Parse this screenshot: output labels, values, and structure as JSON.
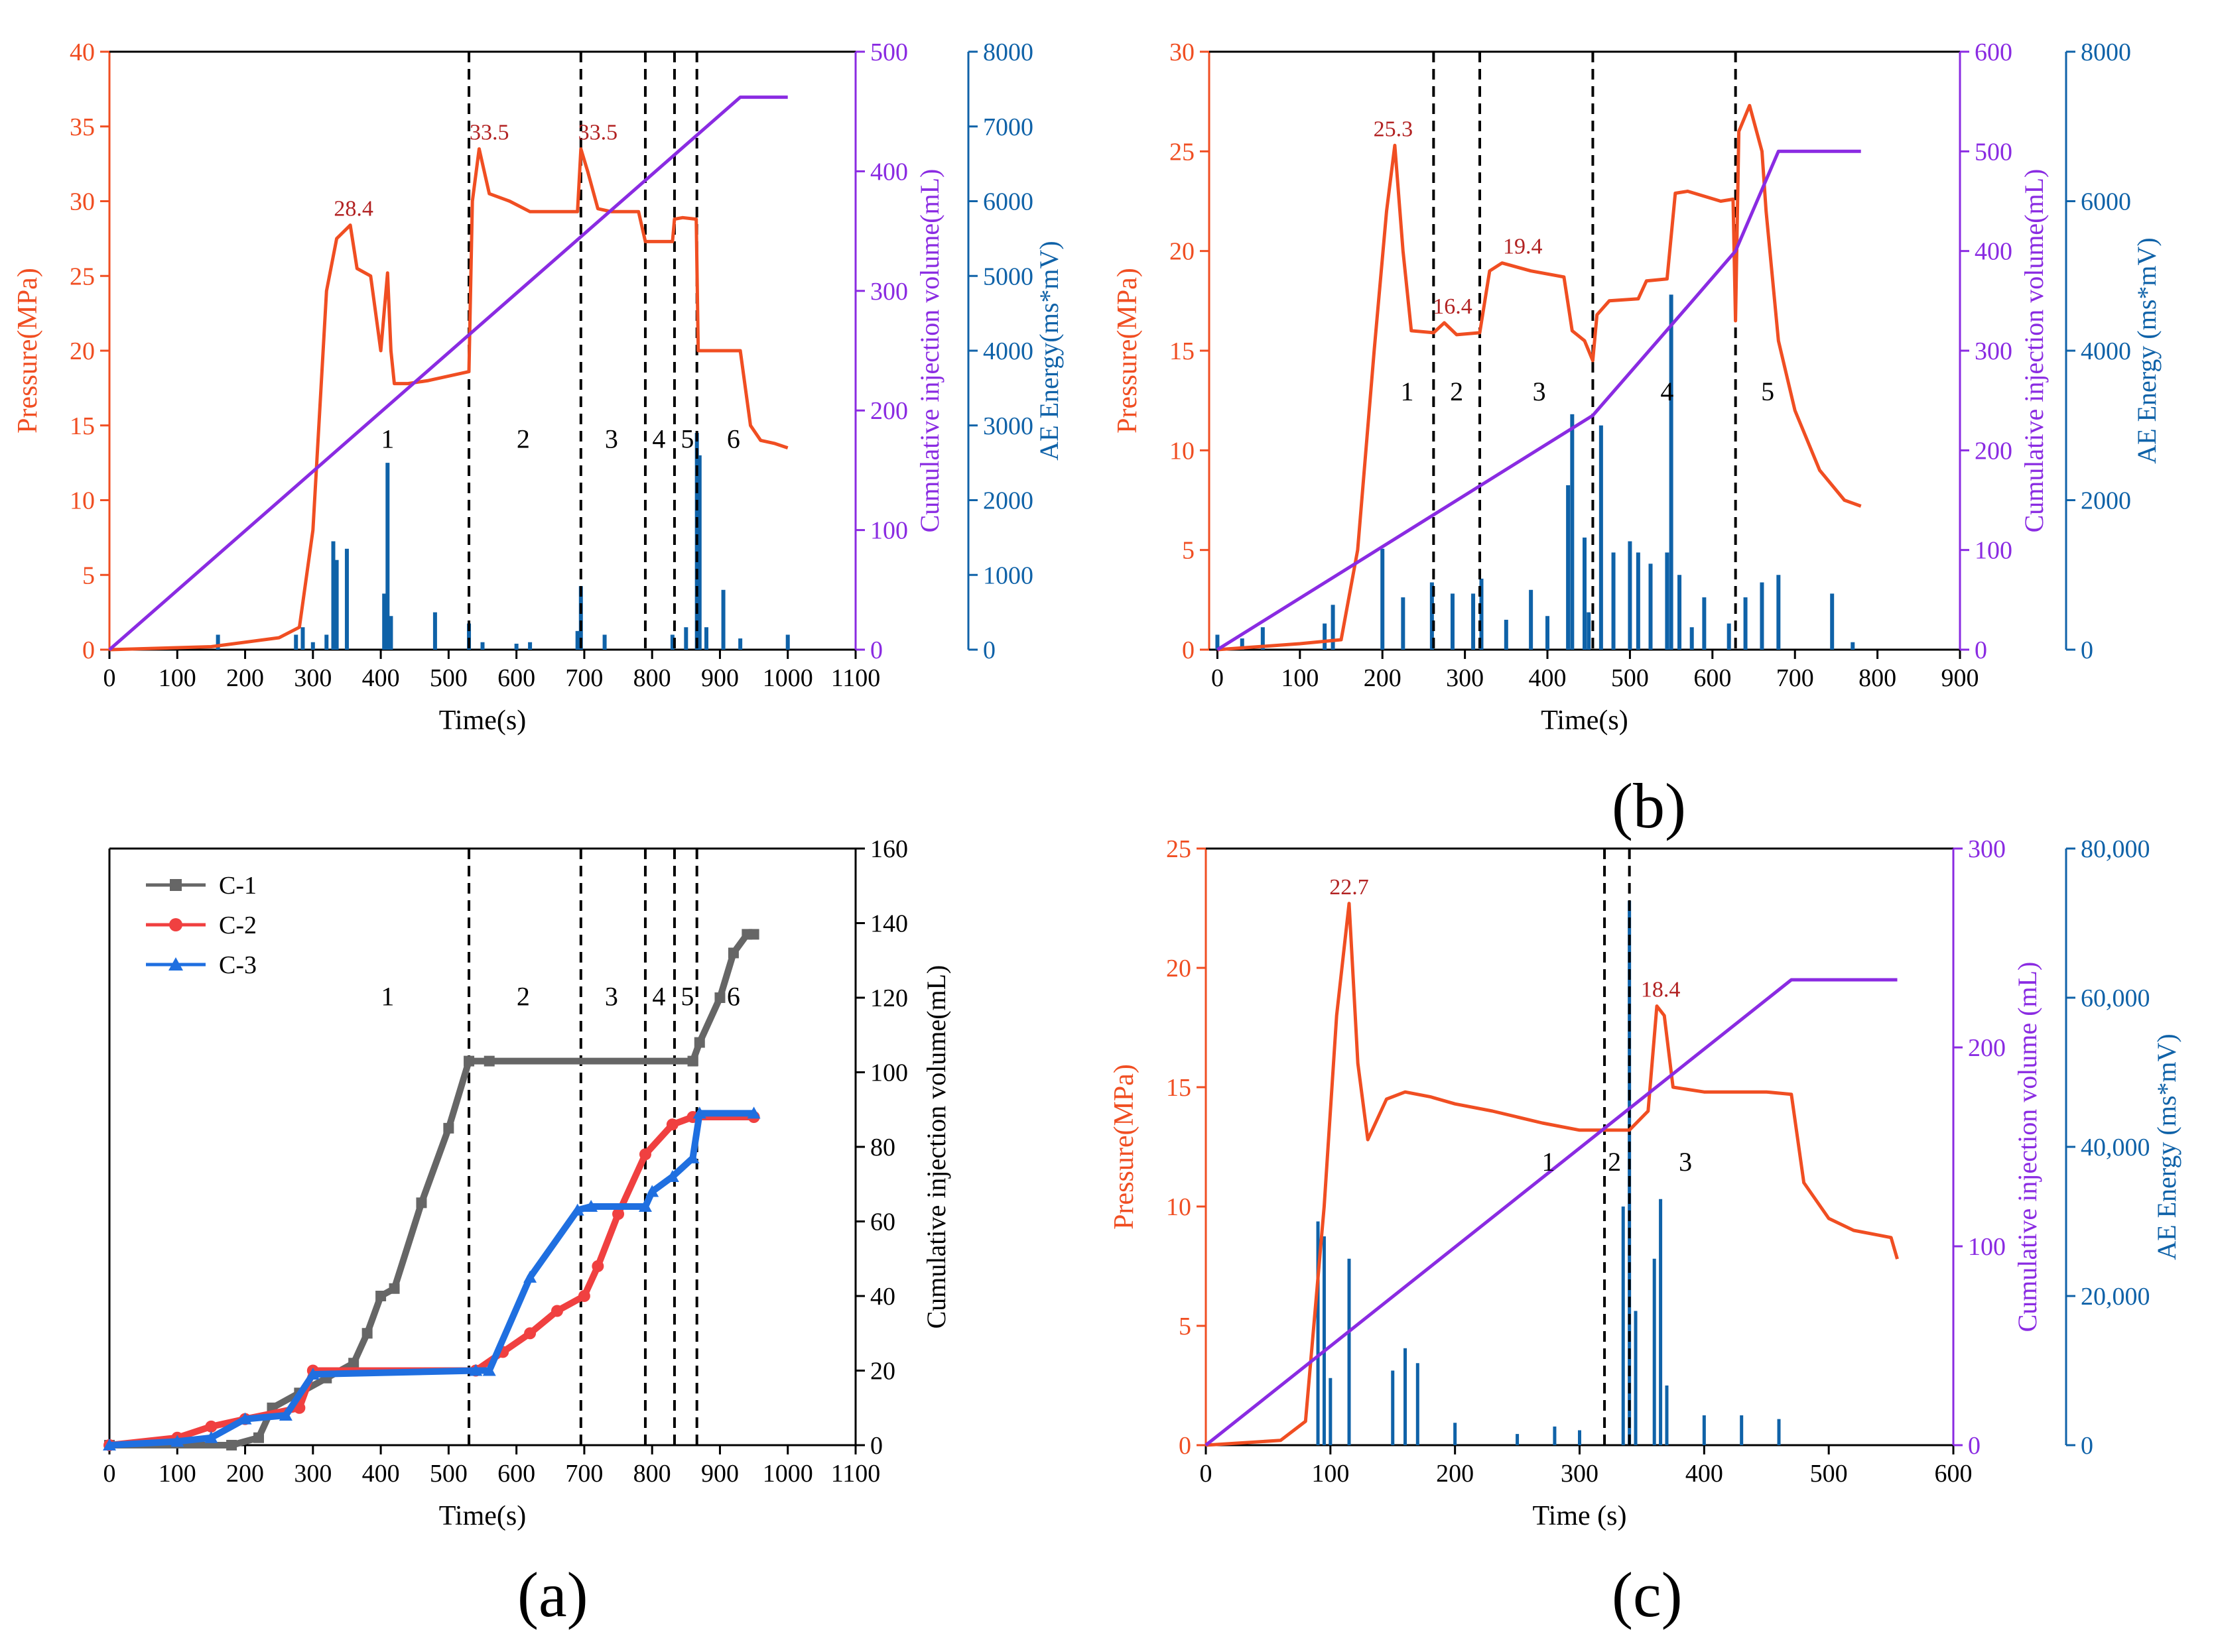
{
  "figure_labels": {
    "a": "(a)",
    "b": "(b)",
    "c": "(c)"
  },
  "colors": {
    "pressure": "#f04e22",
    "injection": "#8a2be2",
    "ae": "#0f62a8",
    "peak_label": "#b22222",
    "axis_black": "#000000",
    "c1": "#666666",
    "c2": "#f04040",
    "c3": "#1f6fe0"
  },
  "chart_data": [
    {
      "id": "top-left",
      "type": "line",
      "title": "",
      "xlabel": "Time(s)",
      "ylabel_left": "Pressure(MPa)",
      "ylabel_right1": "Cumulative injection volume(mL)",
      "ylabel_right2": "AE Energy(ms*mV)",
      "xlim": [
        0,
        1100
      ],
      "xticks": [
        0,
        100,
        200,
        300,
        400,
        500,
        600,
        700,
        800,
        900,
        1000,
        1100
      ],
      "ylim_left": [
        0,
        40
      ],
      "yticks_left": [
        0,
        5,
        10,
        15,
        20,
        25,
        30,
        35,
        40
      ],
      "ylim_right1": [
        0,
        500
      ],
      "yticks_right1": [
        0,
        100,
        200,
        300,
        400,
        500
      ],
      "ylim_right2": [
        0,
        8000
      ],
      "yticks_right2": [
        0,
        1000,
        2000,
        3000,
        4000,
        5000,
        6000,
        7000,
        8000
      ],
      "stage_lines": [
        530,
        695,
        790,
        833,
        866
      ],
      "stage_labels": [
        {
          "x": 410,
          "y": 13.5,
          "text": "1"
        },
        {
          "x": 610,
          "y": 13.5,
          "text": "2"
        },
        {
          "x": 740,
          "y": 13.5,
          "text": "3"
        },
        {
          "x": 810,
          "y": 13.5,
          "text": "4"
        },
        {
          "x": 852,
          "y": 13.5,
          "text": "5"
        },
        {
          "x": 920,
          "y": 13.5,
          "text": "6"
        }
      ],
      "peak_labels": [
        {
          "x": 360,
          "y": 28.4,
          "text": "28.4"
        },
        {
          "x": 560,
          "y": 33.5,
          "text": "33.5"
        },
        {
          "x": 720,
          "y": 33.5,
          "text": "33.5"
        }
      ],
      "series": [
        {
          "name": "Pressure",
          "axis": "left",
          "x": [
            0,
            150,
            250,
            280,
            300,
            320,
            335,
            355,
            365,
            385,
            400,
            410,
            415,
            420,
            440,
            470,
            500,
            530,
            535,
            545,
            560,
            590,
            620,
            660,
            690,
            695,
            705,
            720,
            740,
            760,
            780,
            790,
            800,
            830,
            833,
            845,
            865,
            868,
            880,
            900,
            930,
            945,
            960,
            980,
            1000
          ],
          "y": [
            0,
            0.2,
            0.8,
            1.5,
            8,
            24,
            27.5,
            28.4,
            25.5,
            25,
            20,
            25.2,
            20,
            17.8,
            17.8,
            18,
            18.3,
            18.6,
            30,
            33.5,
            30.5,
            30,
            29.3,
            29.3,
            29.3,
            33.5,
            32,
            29.5,
            29.3,
            29.3,
            29.3,
            27.3,
            27.3,
            27.3,
            28.8,
            28.9,
            28.8,
            20,
            20,
            20,
            20,
            15,
            14,
            13.8,
            13.5
          ]
        },
        {
          "name": "Cumulative injection volume",
          "axis": "right1",
          "x": [
            0,
            930,
            1000
          ],
          "y": [
            0,
            462,
            462
          ]
        },
        {
          "name": "AE Energy",
          "axis": "right2",
          "type": "bar",
          "x": [
            160,
            275,
            285,
            300,
            320,
            330,
            335,
            350,
            405,
            410,
            415,
            480,
            530,
            550,
            600,
            620,
            690,
            695,
            730,
            830,
            850,
            866,
            870,
            880,
            905,
            930,
            1000
          ],
          "y": [
            200,
            200,
            300,
            100,
            200,
            1450,
            1200,
            1350,
            750,
            2500,
            450,
            500,
            350,
            100,
            80,
            100,
            250,
            850,
            200,
            200,
            300,
            2900,
            2600,
            300,
            800,
            150,
            200
          ]
        }
      ]
    },
    {
      "id": "top-right",
      "type": "line",
      "title": "",
      "xlabel": "Time(s)",
      "ylabel_left": "Pressure(MPa)",
      "ylabel_right1": "Cumulative injection volume(mL)",
      "ylabel_right2": "AE Energy (ms*mV)",
      "xlim": [
        -10,
        900
      ],
      "xticks": [
        0,
        100,
        200,
        300,
        400,
        500,
        600,
        700,
        800,
        900
      ],
      "ylim_left": [
        0,
        30
      ],
      "yticks_left": [
        0,
        5,
        10,
        15,
        20,
        25,
        30
      ],
      "ylim_right1": [
        0,
        600
      ],
      "yticks_right1": [
        0,
        100,
        200,
        300,
        400,
        500,
        600
      ],
      "ylim_right2": [
        0,
        8000
      ],
      "yticks_right2": [
        0,
        2000,
        4000,
        6000,
        8000
      ],
      "stage_lines": [
        262,
        318,
        455,
        628
      ],
      "stage_labels": [
        {
          "x": 230,
          "y": 12.5,
          "text": "1"
        },
        {
          "x": 290,
          "y": 12.5,
          "text": "2"
        },
        {
          "x": 390,
          "y": 12.5,
          "text": "3"
        },
        {
          "x": 545,
          "y": 12.5,
          "text": "4"
        },
        {
          "x": 667,
          "y": 12.5,
          "text": "5"
        }
      ],
      "peak_labels": [
        {
          "x": 213,
          "y": 25.3,
          "text": "25.3"
        },
        {
          "x": 285,
          "y": 16.4,
          "text": "16.4"
        },
        {
          "x": 370,
          "y": 19.4,
          "text": "19.4"
        }
      ],
      "series": [
        {
          "name": "Pressure",
          "axis": "left",
          "x": [
            0,
            100,
            150,
            170,
            190,
            205,
            215,
            225,
            235,
            262,
            275,
            290,
            318,
            330,
            345,
            380,
            420,
            430,
            445,
            455,
            460,
            475,
            510,
            520,
            545,
            555,
            570,
            610,
            625,
            628,
            632,
            645,
            660,
            665,
            680,
            700,
            730,
            760,
            780
          ],
          "y": [
            0,
            0.3,
            0.5,
            5,
            15,
            22,
            25.3,
            20,
            16,
            15.9,
            16.4,
            15.8,
            15.9,
            19,
            19.4,
            19.0,
            18.7,
            16,
            15.5,
            14.5,
            16.8,
            17.5,
            17.6,
            18.5,
            18.6,
            22.9,
            23,
            22.5,
            22.6,
            16.5,
            26,
            27.3,
            25,
            22,
            15.5,
            12,
            9,
            7.5,
            7.2
          ]
        },
        {
          "name": "Cumulative injection volume",
          "axis": "right1",
          "x": [
            0,
            455,
            560,
            628,
            680,
            780
          ],
          "y": [
            0,
            235,
            335,
            400,
            500,
            500
          ]
        },
        {
          "name": "AE Energy",
          "axis": "right2",
          "type": "bar",
          "x": [
            0,
            30,
            55,
            130,
            140,
            200,
            225,
            260,
            285,
            310,
            320,
            350,
            380,
            400,
            425,
            430,
            445,
            450,
            465,
            480,
            500,
            510,
            525,
            545,
            550,
            560,
            575,
            590,
            620,
            640,
            660,
            680,
            745,
            770
          ],
          "y": [
            200,
            150,
            300,
            350,
            600,
            1350,
            700,
            900,
            750,
            750,
            950,
            400,
            800,
            450,
            2200,
            3150,
            1500,
            500,
            3000,
            1300,
            1450,
            1300,
            1150,
            1300,
            4750,
            1000,
            300,
            700,
            350,
            700,
            900,
            1000,
            750,
            100
          ]
        }
      ]
    },
    {
      "id": "bottom-left",
      "type": "line",
      "title": "",
      "xlabel": "Time(s)",
      "ylabel_right1": "Cumulative injection volume(mL)",
      "xlim": [
        0,
        1100
      ],
      "xticks": [
        0,
        100,
        200,
        300,
        400,
        500,
        600,
        700,
        800,
        900,
        1000,
        1100
      ],
      "ylim_right1": [
        0,
        160
      ],
      "yticks_right1": [
        0,
        20,
        40,
        60,
        80,
        100,
        120,
        140,
        160
      ],
      "stage_lines": [
        530,
        695,
        790,
        833,
        866
      ],
      "stage_labels": [
        {
          "x": 410,
          "y": 118,
          "text": "1"
        },
        {
          "x": 610,
          "y": 118,
          "text": "2"
        },
        {
          "x": 740,
          "y": 118,
          "text": "3"
        },
        {
          "x": 810,
          "y": 118,
          "text": "4"
        },
        {
          "x": 852,
          "y": 118,
          "text": "5"
        },
        {
          "x": 920,
          "y": 118,
          "text": "6"
        }
      ],
      "legend": [
        "C-1",
        "C-2",
        "C-3"
      ],
      "series": [
        {
          "name": "C-1",
          "x": [
            0,
            180,
            220,
            240,
            280,
            320,
            360,
            380,
            400,
            420,
            460,
            500,
            530,
            560,
            860,
            870,
            900,
            920,
            940,
            950
          ],
          "y": [
            0,
            0,
            2,
            10,
            14,
            18,
            22,
            30,
            40,
            42,
            65,
            85,
            103,
            103,
            103,
            108,
            120,
            132,
            137,
            137
          ]
        },
        {
          "name": "C-2",
          "x": [
            0,
            100,
            150,
            200,
            280,
            300,
            540,
            580,
            620,
            660,
            700,
            720,
            750,
            790,
            830,
            860,
            950
          ],
          "y": [
            0,
            2,
            5,
            7,
            10,
            20,
            20,
            25,
            30,
            36,
            40,
            48,
            62,
            78,
            86,
            88,
            88
          ]
        },
        {
          "name": "C-3",
          "x": [
            0,
            100,
            150,
            200,
            260,
            300,
            540,
            560,
            620,
            690,
            710,
            790,
            800,
            830,
            860,
            870,
            950
          ],
          "y": [
            0,
            1,
            2,
            7,
            8,
            19,
            20,
            20,
            45,
            63,
            64,
            64,
            68,
            72,
            77,
            89,
            89
          ]
        }
      ]
    },
    {
      "id": "bottom-right",
      "type": "line",
      "title": "",
      "xlabel": "Time (s)",
      "ylabel_left": "Pressure(MPa)",
      "ylabel_right1": "Cumulative injection volume (mL)",
      "ylabel_right2": "AE Energy (ms*mV)",
      "xlim": [
        0,
        600
      ],
      "xticks": [
        0,
        100,
        200,
        300,
        400,
        500,
        600
      ],
      "ylim_left": [
        0,
        25
      ],
      "yticks_left": [
        0,
        5,
        10,
        15,
        20,
        25
      ],
      "ylim_right1": [
        0,
        300
      ],
      "yticks_right1": [
        0,
        100,
        200,
        300
      ],
      "ylim_right2": [
        0,
        80000
      ],
      "yticks_right2": [
        "0",
        "20,000",
        "40,000",
        "60,000",
        "80,000"
      ],
      "yticks_right2_values": [
        0,
        20000,
        40000,
        60000,
        80000
      ],
      "stage_lines": [
        320,
        340
      ],
      "stage_labels": [
        {
          "x": 275,
          "y": 11.5,
          "text": "1"
        },
        {
          "x": 328,
          "y": 11.5,
          "text": "2"
        },
        {
          "x": 385,
          "y": 11.5,
          "text": "3"
        }
      ],
      "peak_labels": [
        {
          "x": 115,
          "y": 22.7,
          "text": "22.7"
        },
        {
          "x": 365,
          "y": 18.4,
          "text": "18.4"
        }
      ],
      "series": [
        {
          "name": "Pressure",
          "axis": "left",
          "x": [
            0,
            60,
            80,
            95,
            105,
            115,
            122,
            130,
            145,
            160,
            180,
            200,
            230,
            270,
            300,
            320,
            340,
            355,
            362,
            368,
            375,
            400,
            450,
            470,
            480,
            500,
            520,
            540,
            550,
            555
          ],
          "y": [
            0,
            0.2,
            1,
            10,
            18,
            22.7,
            16,
            12.8,
            14.5,
            14.8,
            14.6,
            14.3,
            14,
            13.5,
            13.2,
            13.2,
            13.2,
            14,
            18.4,
            18,
            15,
            14.8,
            14.8,
            14.7,
            11,
            9.5,
            9,
            8.8,
            8.7,
            7.8
          ]
        },
        {
          "name": "Cumulative injection volume",
          "axis": "right1",
          "x": [
            0,
            470,
            555
          ],
          "y": [
            0,
            234,
            234
          ]
        },
        {
          "name": "AE Energy",
          "axis": "right2",
          "type": "bar",
          "x": [
            90,
            95,
            100,
            115,
            150,
            160,
            170,
            200,
            250,
            280,
            300,
            335,
            340,
            345,
            360,
            365,
            370,
            400,
            430,
            460
          ],
          "y": [
            30000,
            28000,
            9000,
            25000,
            10000,
            13000,
            11000,
            3000,
            1500,
            2500,
            2000,
            32000,
            73000,
            18000,
            25000,
            33000,
            8000,
            4000,
            4000,
            3500
          ]
        }
      ]
    }
  ]
}
